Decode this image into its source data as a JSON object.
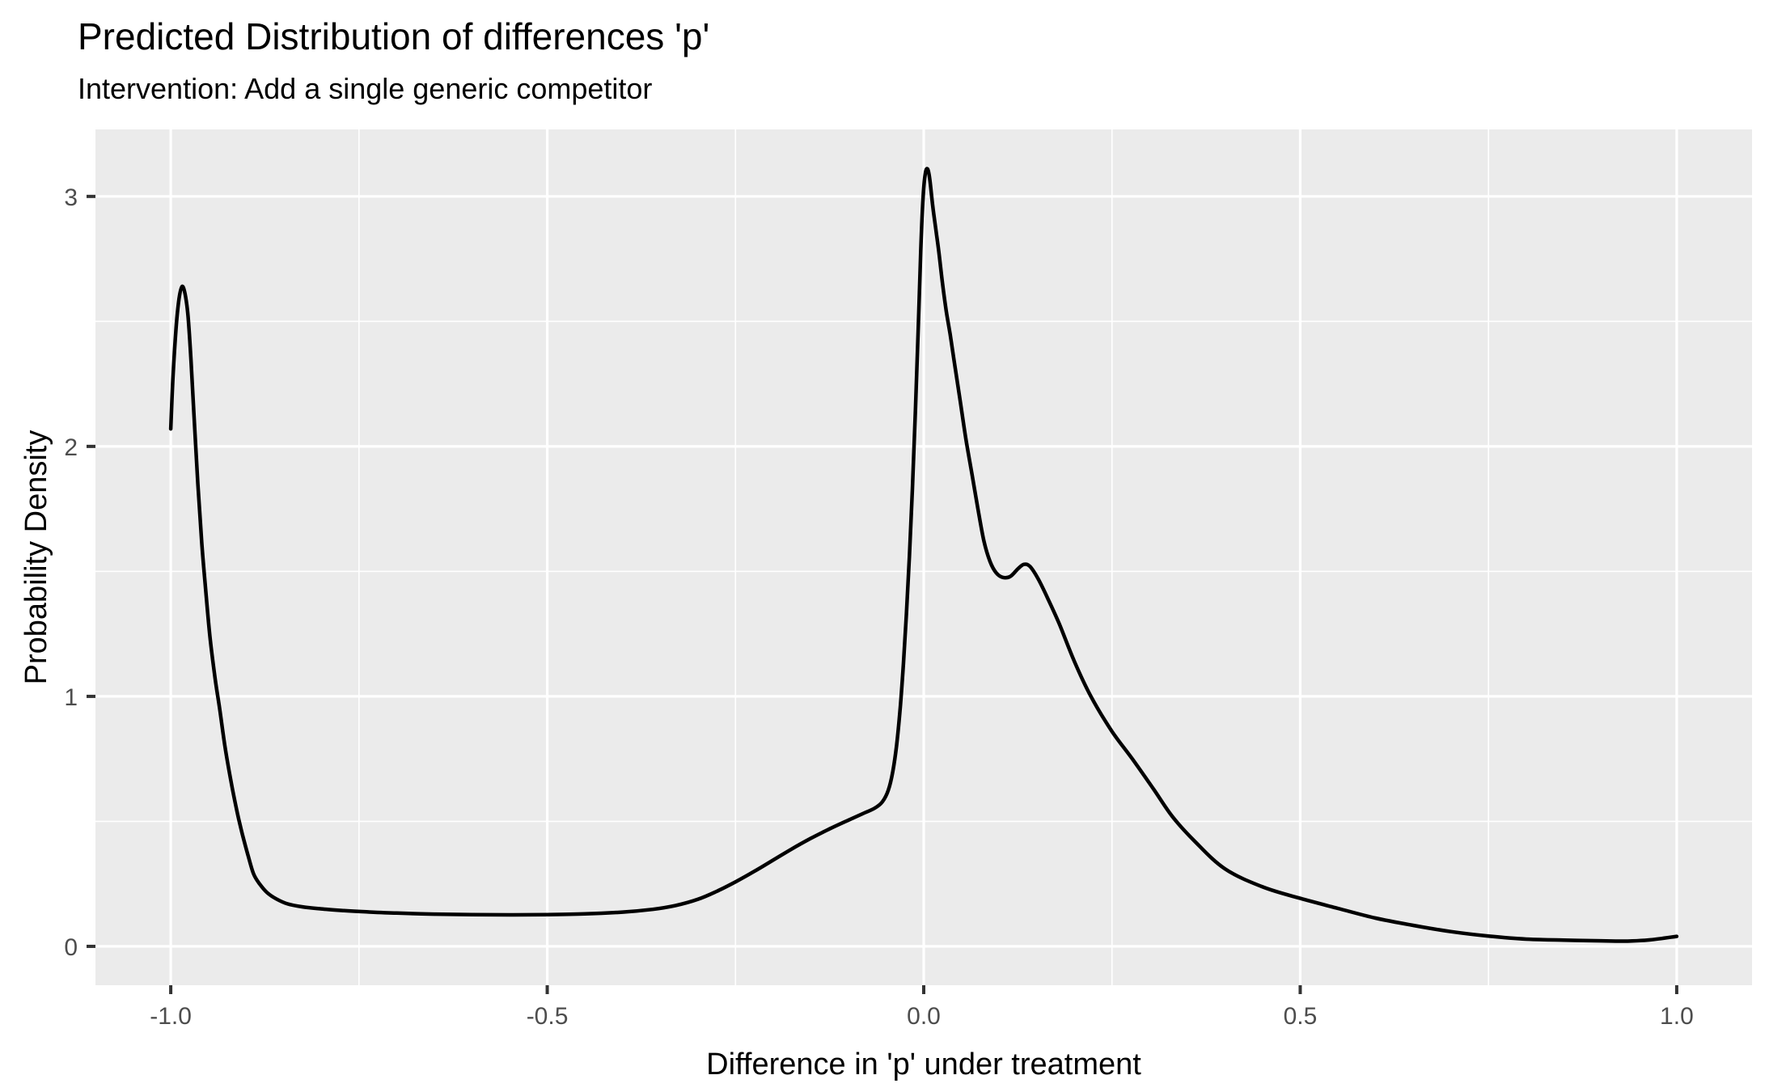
{
  "chart_data": {
    "type": "line",
    "title": "Predicted Distribution of differences 'p'",
    "subtitle": "Intervention: Add a single generic competitor",
    "xlabel": "Difference in 'p' under treatment",
    "ylabel": "Probability Density",
    "xlim": [
      -1.1,
      1.1
    ],
    "ylim": [
      -0.1555,
      3.268
    ],
    "grid": "on",
    "legend": "none",
    "x_ticks": {
      "values": [
        -1.0,
        -0.5,
        0.0,
        0.5,
        1.0
      ],
      "labels": [
        "-1.0",
        "-0.5",
        "0.0",
        "0.5",
        "1.0"
      ],
      "minor": [
        -0.75,
        -0.25,
        0.25,
        0.75
      ]
    },
    "y_ticks": {
      "values": [
        0,
        1,
        2,
        3
      ],
      "labels": [
        "0",
        "1",
        "2",
        "3"
      ],
      "minor": [
        0.5,
        1.5,
        2.5
      ]
    },
    "series": [
      {
        "name": "density",
        "points": [
          [
            -1.0,
            2.07
          ],
          [
            -0.997,
            2.28
          ],
          [
            -0.993,
            2.47
          ],
          [
            -0.989,
            2.59
          ],
          [
            -0.985,
            2.64
          ],
          [
            -0.981,
            2.61
          ],
          [
            -0.977,
            2.52
          ],
          [
            -0.973,
            2.34
          ],
          [
            -0.969,
            2.12
          ],
          [
            -0.964,
            1.85
          ],
          [
            -0.959,
            1.62
          ],
          [
            -0.954,
            1.44
          ],
          [
            -0.948,
            1.24
          ],
          [
            -0.941,
            1.07
          ],
          [
            -0.935,
            0.95
          ],
          [
            -0.928,
            0.8
          ],
          [
            -0.92,
            0.66
          ],
          [
            -0.912,
            0.54
          ],
          [
            -0.905,
            0.45
          ],
          [
            -0.897,
            0.36
          ],
          [
            -0.89,
            0.29
          ],
          [
            -0.882,
            0.25
          ],
          [
            -0.872,
            0.215
          ],
          [
            -0.86,
            0.19
          ],
          [
            -0.845,
            0.17
          ],
          [
            -0.825,
            0.158
          ],
          [
            -0.8,
            0.15
          ],
          [
            -0.77,
            0.143
          ],
          [
            -0.74,
            0.138
          ],
          [
            -0.7,
            0.133
          ],
          [
            -0.65,
            0.129
          ],
          [
            -0.6,
            0.127
          ],
          [
            -0.55,
            0.126
          ],
          [
            -0.5,
            0.127
          ],
          [
            -0.45,
            0.13
          ],
          [
            -0.4,
            0.137
          ],
          [
            -0.36,
            0.148
          ],
          [
            -0.33,
            0.163
          ],
          [
            -0.3,
            0.188
          ],
          [
            -0.275,
            0.22
          ],
          [
            -0.25,
            0.258
          ],
          [
            -0.225,
            0.3
          ],
          [
            -0.2,
            0.345
          ],
          [
            -0.175,
            0.39
          ],
          [
            -0.15,
            0.432
          ],
          [
            -0.125,
            0.47
          ],
          [
            -0.1,
            0.505
          ],
          [
            -0.08,
            0.532
          ],
          [
            -0.065,
            0.553
          ],
          [
            -0.055,
            0.578
          ],
          [
            -0.047,
            0.625
          ],
          [
            -0.041,
            0.7
          ],
          [
            -0.036,
            0.805
          ],
          [
            -0.031,
            0.96
          ],
          [
            -0.027,
            1.13
          ],
          [
            -0.023,
            1.33
          ],
          [
            -0.019,
            1.56
          ],
          [
            -0.015,
            1.83
          ],
          [
            -0.011,
            2.15
          ],
          [
            -0.007,
            2.5
          ],
          [
            -0.004,
            2.78
          ],
          [
            -0.001,
            2.99
          ],
          [
            0.002,
            3.09
          ],
          [
            0.005,
            3.11
          ],
          [
            0.008,
            3.07
          ],
          [
            0.012,
            2.96
          ],
          [
            0.016,
            2.87
          ],
          [
            0.02,
            2.78
          ],
          [
            0.025,
            2.65
          ],
          [
            0.03,
            2.54
          ],
          [
            0.035,
            2.45
          ],
          [
            0.04,
            2.35
          ],
          [
            0.048,
            2.19
          ],
          [
            0.056,
            2.03
          ],
          [
            0.064,
            1.89
          ],
          [
            0.072,
            1.75
          ],
          [
            0.08,
            1.62
          ],
          [
            0.088,
            1.54
          ],
          [
            0.096,
            1.495
          ],
          [
            0.105,
            1.476
          ],
          [
            0.115,
            1.48
          ],
          [
            0.125,
            1.51
          ],
          [
            0.133,
            1.528
          ],
          [
            0.141,
            1.52
          ],
          [
            0.152,
            1.47
          ],
          [
            0.165,
            1.39
          ],
          [
            0.18,
            1.29
          ],
          [
            0.2,
            1.14
          ],
          [
            0.222,
            1.0
          ],
          [
            0.25,
            0.86
          ],
          [
            0.277,
            0.75
          ],
          [
            0.305,
            0.63
          ],
          [
            0.33,
            0.52
          ],
          [
            0.36,
            0.42
          ],
          [
            0.4,
            0.31
          ],
          [
            0.45,
            0.238
          ],
          [
            0.5,
            0.192
          ],
          [
            0.55,
            0.152
          ],
          [
            0.6,
            0.113
          ],
          [
            0.65,
            0.084
          ],
          [
            0.7,
            0.059
          ],
          [
            0.75,
            0.041
          ],
          [
            0.8,
            0.029
          ],
          [
            0.85,
            0.025
          ],
          [
            0.9,
            0.022
          ],
          [
            0.935,
            0.021
          ],
          [
            0.965,
            0.026
          ],
          [
            1.0,
            0.04
          ]
        ]
      }
    ],
    "style": {
      "panel_bg": "#EBEBEB",
      "grid_color": "#FFFFFF",
      "curve_color": "#000000",
      "tick_mark_color": "#333333",
      "tick_label_color": "#4D4D4D"
    }
  }
}
